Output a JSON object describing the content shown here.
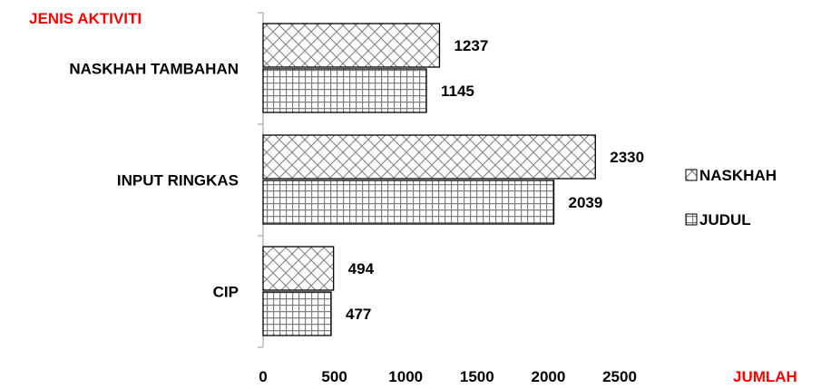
{
  "chart_data": {
    "type": "bar",
    "orientation": "horizontal",
    "ylabel": "JENIS AKTIVITI",
    "xlabel": "JUMLAH",
    "categories": [
      "NASKHAH TAMBAHAN",
      "INPUT RINGKAS",
      "CIP"
    ],
    "series": [
      {
        "name": "NASKHAH",
        "values": [
          1237,
          2330,
          494
        ],
        "pattern": "crosshatch"
      },
      {
        "name": "JUDUL",
        "values": [
          1145,
          2039,
          477
        ],
        "pattern": "grid"
      }
    ],
    "xlim": [
      0,
      2500
    ],
    "xticks": [
      "0",
      "500",
      "1000",
      "1500",
      "2000",
      "2500"
    ],
    "legend_position": "right",
    "grid": false,
    "label_color": "#ff0000",
    "bar_fill": "#ffffff",
    "pattern_color": "#808080"
  }
}
